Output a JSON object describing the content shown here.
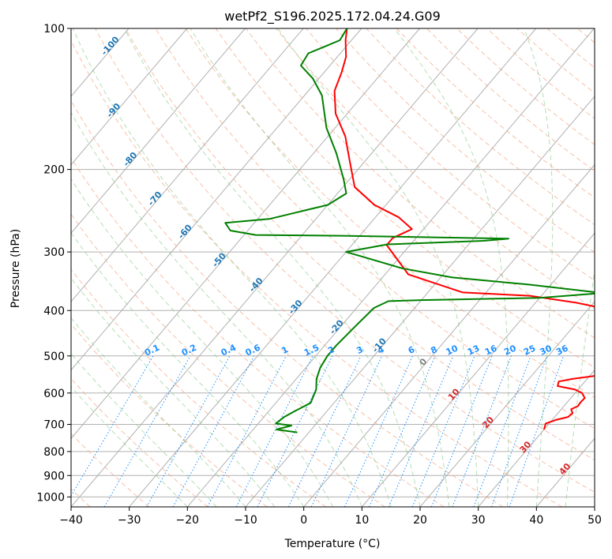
{
  "chart_data": {
    "type": "line",
    "title": "wetPf2_S196.2025.172.04.24.G09",
    "xlabel": "Temperature (°C)",
    "ylabel": "Pressure (hPa)",
    "xlim": [
      -40,
      50
    ],
    "ylim": [
      1050,
      100
    ],
    "y_scale": "log",
    "x_ticks": [
      "−40",
      "−30",
      "−20",
      "−10",
      "0",
      "10",
      "20",
      "30",
      "40",
      "50"
    ],
    "y_ticks": [
      "100",
      "200",
      "300",
      "400",
      "500",
      "600",
      "700",
      "800",
      "900",
      "1000"
    ],
    "grid": true,
    "skew_t": true,
    "series": [
      {
        "role": "temperature",
        "color": "#ff0000",
        "points": [
          [
            30.0,
            718
          ],
          [
            29.4,
            697
          ],
          [
            30.6,
            685
          ],
          [
            32.3,
            675
          ],
          [
            32.5,
            662
          ],
          [
            31.7,
            650
          ],
          [
            32.4,
            640
          ],
          [
            32.3,
            628
          ],
          [
            32.4,
            615
          ],
          [
            31.2,
            600
          ],
          [
            29.5,
            590
          ],
          [
            26.0,
            580
          ],
          [
            25.5,
            567
          ],
          [
            27.4,
            560
          ],
          [
            31.5,
            550
          ],
          [
            35.0,
            540
          ],
          [
            35.7,
            525
          ],
          [
            36.2,
            505
          ],
          [
            36.5,
            485
          ],
          [
            36.0,
            460
          ],
          [
            33.0,
            425
          ],
          [
            27.0,
            405
          ],
          [
            17.0,
            385
          ],
          [
            8.0,
            372
          ],
          [
            -4.0,
            366
          ],
          [
            -16.0,
            335
          ],
          [
            -24.0,
            290
          ],
          [
            -24.0,
            280
          ],
          [
            -22.0,
            268
          ],
          [
            -26.0,
            253
          ],
          [
            -32.0,
            238
          ],
          [
            -38.0,
            218
          ],
          [
            -43.0,
            190
          ],
          [
            -47.0,
            170
          ],
          [
            -52.0,
            152
          ],
          [
            -55.5,
            136
          ],
          [
            -57.0,
            124
          ],
          [
            -58.5,
            115
          ],
          [
            -61.0,
            106
          ],
          [
            -62.5,
            100
          ]
        ]
      },
      {
        "role": "dewpoint",
        "color": "#008000",
        "points": [
          [
            -12.0,
            728
          ],
          [
            -16.0,
            718
          ],
          [
            -14.0,
            704
          ],
          [
            -17.0,
            697
          ],
          [
            -16.5,
            675
          ],
          [
            -15.5,
            655
          ],
          [
            -14.0,
            630
          ],
          [
            -14.5,
            610
          ],
          [
            -15.0,
            590
          ],
          [
            -16.5,
            560
          ],
          [
            -17.5,
            530
          ],
          [
            -18.0,
            500
          ],
          [
            -18.0,
            475
          ],
          [
            -17.5,
            430
          ],
          [
            -17.0,
            395
          ],
          [
            -15.5,
            382
          ],
          [
            -10.0,
            380
          ],
          [
            10.0,
            376
          ],
          [
            20.0,
            367
          ],
          [
            6.0,
            352
          ],
          [
            -8.0,
            340
          ],
          [
            -18.0,
            325
          ],
          [
            -27.0,
            306
          ],
          [
            -30.0,
            300
          ],
          [
            -24.0,
            289
          ],
          [
            -8.0,
            284
          ],
          [
            -4.0,
            281
          ],
          [
            -33.0,
            277
          ],
          [
            -48.0,
            276
          ],
          [
            -53.0,
            270
          ],
          [
            -55.0,
            260
          ],
          [
            -48.0,
            255
          ],
          [
            -40.0,
            238
          ],
          [
            -38.5,
            225
          ],
          [
            -41.0,
            210
          ],
          [
            -46.0,
            185
          ],
          [
            -51.5,
            163
          ],
          [
            -57.0,
            139
          ],
          [
            -61.0,
            128
          ],
          [
            -65.0,
            120
          ],
          [
            -65.5,
            113
          ],
          [
            -63.5,
            109
          ],
          [
            -62.0,
            106
          ],
          [
            -62.5,
            100
          ]
        ]
      }
    ],
    "moist_adiabat_labels": [
      "-100",
      "-90",
      "-80",
      "-70",
      "-60",
      "-50",
      "-40",
      "-30",
      "-20",
      "-10",
      "0",
      "10",
      "20",
      "30",
      "40"
    ],
    "mixing_ratio_labels": [
      "0.1",
      "0.2",
      "0.4",
      "0.6",
      "1",
      "1.5",
      "2",
      "3",
      "4",
      "6",
      "8",
      "10",
      "13",
      "16",
      "20",
      "25",
      "30",
      "36"
    ],
    "colors": {
      "temperature": "#ff0000",
      "dewpoint": "#008000",
      "dry_adiabat": "#f4a582",
      "moist_adiabat": "#84c684",
      "mixing_ratio": "#1e90ff",
      "isotherm": "#909090"
    }
  }
}
